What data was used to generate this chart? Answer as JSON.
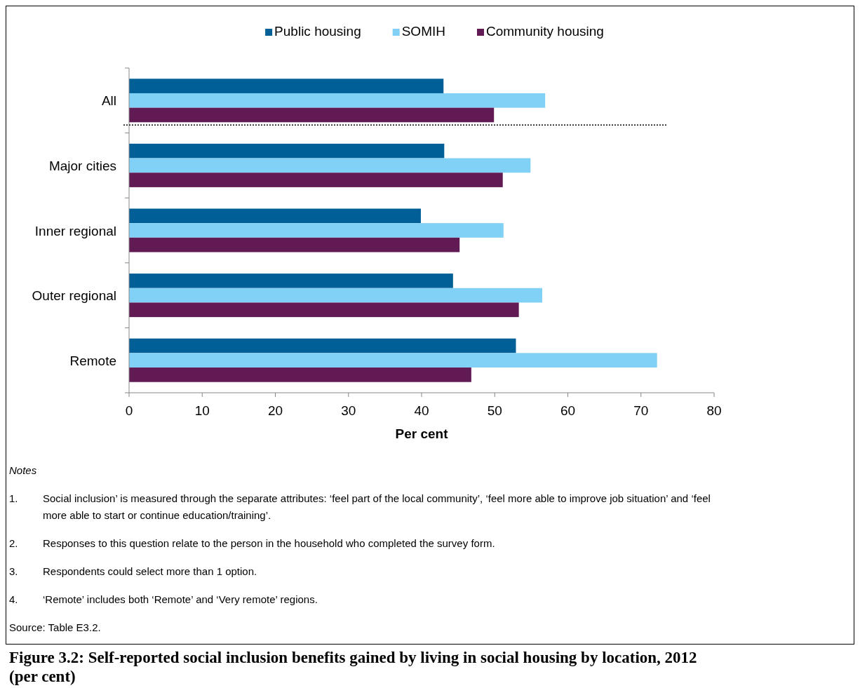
{
  "chart_data": {
    "type": "bar",
    "orientation": "horizontal",
    "title": "Figure 3.2: Self-reported social inclusion benefits gained by living in social housing by location, 2012 (per cent)",
    "xlabel": "Per cent",
    "categories": [
      "All",
      "Major cities",
      "Inner regional",
      "Outer regional",
      "Remote"
    ],
    "series": [
      {
        "name": "Public housing",
        "color": "#005f96",
        "values": [
          43.0,
          43.1,
          39.9,
          44.3,
          52.9
        ]
      },
      {
        "name": "SOMIH",
        "color": "#81d0f5",
        "values": [
          56.9,
          54.9,
          51.2,
          56.5,
          72.2
        ]
      },
      {
        "name": "Community housing",
        "color": "#621a55",
        "values": [
          49.9,
          51.1,
          45.2,
          53.3,
          46.8
        ]
      }
    ],
    "ref_lines": [
      {
        "axis": "y",
        "value": "All",
        "line_style": "dotted",
        "color": "#000000"
      }
    ],
    "xlim": [
      0,
      80
    ],
    "xticks": [
      0,
      10,
      20,
      30,
      40,
      50,
      60,
      70,
      80
    ],
    "grid": false,
    "legend": "top",
    "annotations": [
      "Notes",
      "1. Social inclusion’ is measured through the separate attributes: ‘feel part of the local community’, ‘feel more able to improve job situation’ and ‘feel more able to start or continue education/training’.",
      "2. Responses to this question relate to the person in the household who completed the survey form.",
      "3. Respondents could select more than 1 option.",
      "4. ‘Remote’ includes both ‘Remote’ and ‘Very remote’ regions.",
      "Source: Table E3.2."
    ]
  }
}
